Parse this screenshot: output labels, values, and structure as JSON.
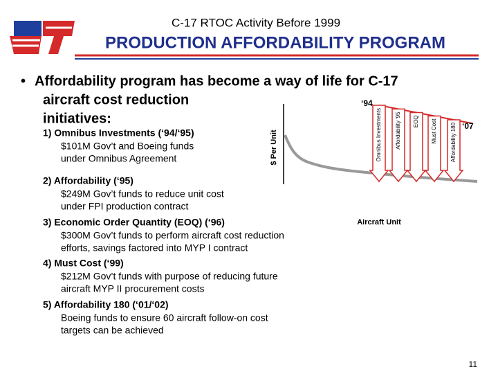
{
  "header": {
    "title": "C-17 RTOC Activity Before 1999",
    "subtitle": "PRODUCTION AFFORDABILITY PROGRAM"
  },
  "bullet": [
    "Affordability program has become a way of life for C-17",
    "aircraft cost reduction",
    "initiatives:"
  ],
  "items": [
    {
      "title": "1) Omnibus Investments (‘94/‘95)",
      "lines": [
        "$101M Gov’t and Boeing funds",
        "under Omnibus Agreement"
      ]
    },
    {
      "title": "2) Affordability (‘95)",
      "lines": [
        "$249M Gov’t funds to reduce unit cost",
        "under FPI production contract"
      ]
    },
    {
      "title": "3) Economic Order Quantity (EOQ) (‘96)",
      "lines": [
        "$300M Gov’t funds to perform aircraft cost reduction",
        "efforts, savings factored into MYP I  contract"
      ]
    },
    {
      "title": "4) Must Cost (‘99)",
      "lines": [
        "$212M Gov’t funds with purpose of reducing future",
        "aircraft MYP II procurement costs"
      ]
    },
    {
      "title": "5) Affordability 180 (‘01/‘02)",
      "lines": [
        "Boeing funds to ensure 60 aircraft follow-on cost",
        "targets can be achieved"
      ]
    }
  ],
  "diagram": {
    "y_label": "$ Per Unit",
    "x_label": "Aircraft Unit",
    "start_label": "‘94",
    "end_label": "‘07",
    "arrows": [
      "Omnibus Investments",
      "Affordability '95",
      "EOQ",
      "Must Cost",
      "Affordability 180"
    ]
  },
  "page_number": "11"
}
